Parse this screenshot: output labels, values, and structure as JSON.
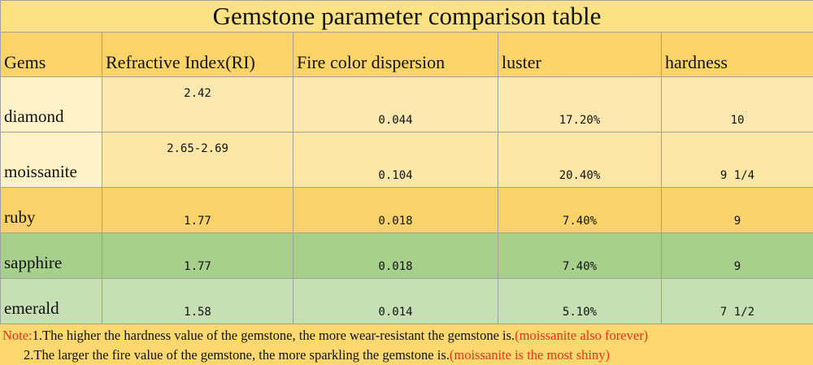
{
  "title": "Gemstone parameter comparison table",
  "table": {
    "header": [
      "Gems",
      "Refractive Index(RI)",
      "Fire color dispersion",
      "luster",
      "hardness"
    ],
    "rows": [
      [
        "diamond",
        "2.42",
        "0.044",
        "17.20%",
        "10"
      ],
      [
        "moissanite",
        "2.65-2.69",
        "0.104",
        "20.40%",
        "9 1/4"
      ],
      [
        "ruby",
        "1.77",
        "0.018",
        "7.40%",
        "9"
      ],
      [
        "sapphire",
        "1.77",
        "0.018",
        "7.40%",
        "9"
      ],
      [
        "emerald",
        "1.58",
        "0.014",
        "5.10%",
        "7 1/2"
      ]
    ]
  },
  "notes": {
    "label": "Note:",
    "items": [
      {
        "text": "1.The higher the hardness value of the gemstone, the more wear-resistant the gemstone is.",
        "remark": "(moissanite also forever)"
      },
      {
        "text": "2.The larger the fire value of the gemstone, the more sparkling the gemstone is.",
        "remark": "(moissanite is the most shiny)"
      }
    ]
  }
}
